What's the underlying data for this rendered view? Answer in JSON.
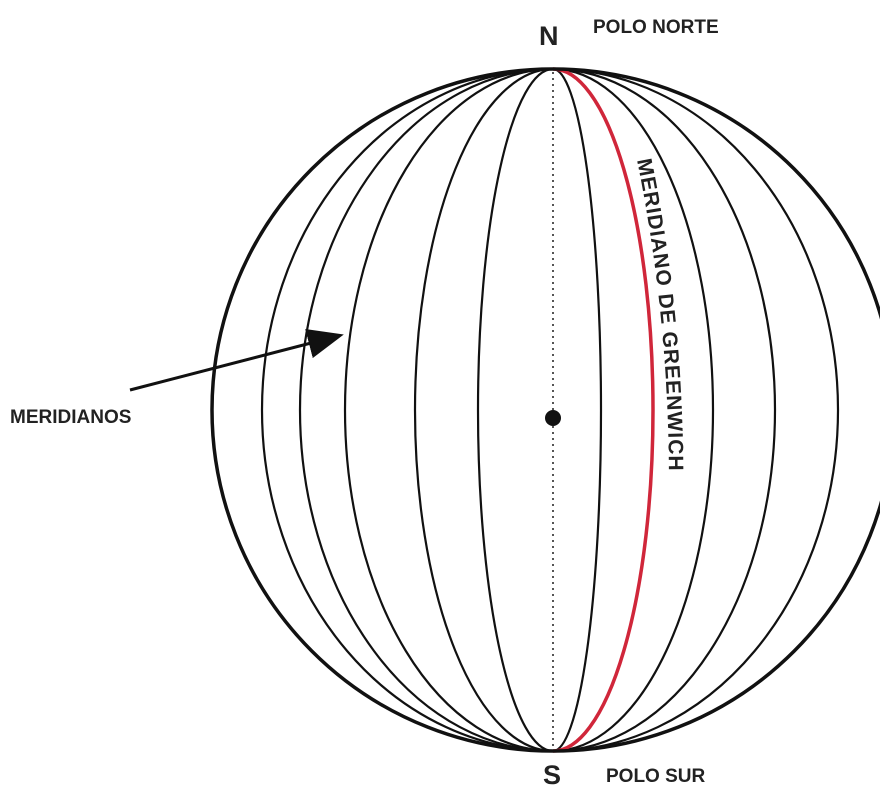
{
  "labels": {
    "north": "N",
    "north_pole": "POLO NORTE",
    "south": "S",
    "south_pole": "POLO SUR",
    "meridians": "MERIDIANOS",
    "greenwich": "MERIDIANO DE GREENWICH"
  }
}
